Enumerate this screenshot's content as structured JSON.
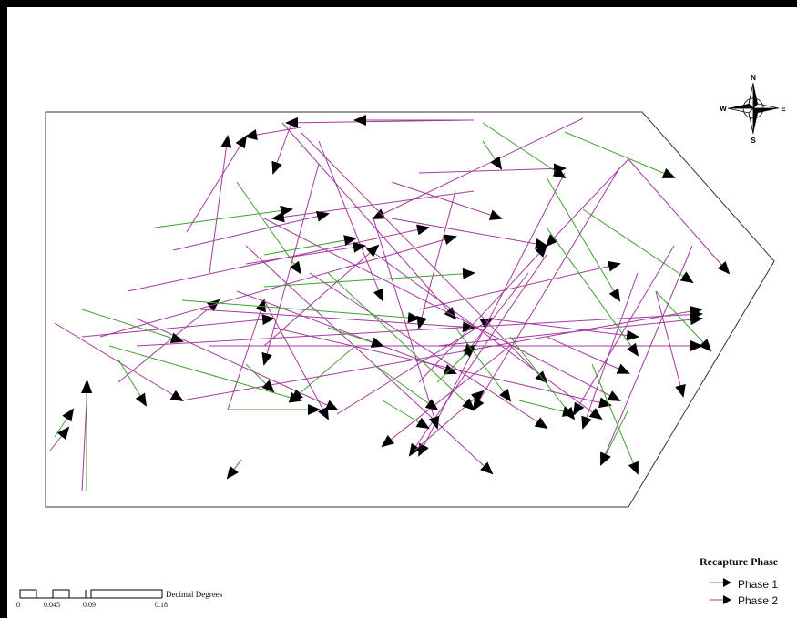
{
  "map": {
    "north_arrow": {
      "icon": "compass-rose-icon",
      "n": "N",
      "s": "S",
      "e": "E",
      "w": "W"
    },
    "colors": {
      "phase1": "#3f9f2f",
      "phase2": "#a3399f",
      "outline": "#333333",
      "arrowhead": "#000000"
    }
  },
  "legend": {
    "title": "Recapture Phase",
    "items": [
      {
        "label": "Phase 1",
        "color": "#3f9f2f"
      },
      {
        "label": "Phase 2",
        "color": "#a3399f"
      }
    ]
  },
  "scale_bar": {
    "unit_label": "Decimal Degrees",
    "ticks": [
      "0",
      "0.045",
      "0.09",
      "0.18"
    ]
  }
}
